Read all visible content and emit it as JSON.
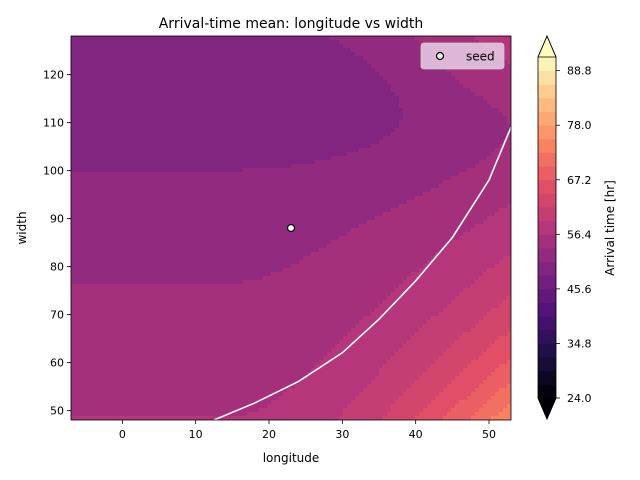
{
  "chart_data": {
    "type": "contourf",
    "title": "Arrival-time mean: longitude vs width",
    "xlabel": "longitude",
    "ylabel": "width",
    "xlim": [
      -7,
      53
    ],
    "ylim": [
      48,
      128
    ],
    "xticks": [
      0,
      10,
      20,
      30,
      40,
      50
    ],
    "yticks": [
      50,
      60,
      70,
      80,
      90,
      100,
      110,
      120
    ],
    "colorbar": {
      "label": "Arrival time [hr]",
      "levels": [
        24.0,
        26.7,
        29.4,
        32.1,
        34.8,
        37.5,
        40.2,
        42.9,
        45.6,
        48.3,
        51.0,
        53.7,
        56.4,
        59.1,
        61.8,
        64.5,
        67.2,
        69.9,
        72.6,
        75.3,
        78.0,
        80.7,
        83.4,
        86.1,
        88.8,
        91.5
      ],
      "tick_labels": [
        "24.0",
        "34.8",
        "45.6",
        "56.4",
        "67.2",
        "78.0",
        "88.8"
      ],
      "extend": "both",
      "colormap": "magma"
    },
    "surface_model": {
      "description_points": [
        {
          "longitude": -5,
          "width": 120,
          "value": 48.5
        },
        {
          "longitude": 10,
          "width": 120,
          "value": 49.0
        },
        {
          "longitude": 40,
          "width": 120,
          "value": 51.0
        },
        {
          "longitude": 50,
          "width": 125,
          "value": 55.0
        },
        {
          "longitude": 0,
          "width": 90,
          "value": 53.0
        },
        {
          "longitude": 23,
          "width": 88,
          "value": 53.5
        },
        {
          "longitude": 0,
          "width": 60,
          "value": 56.0
        },
        {
          "longitude": 0,
          "width": 50,
          "value": 58.0
        },
        {
          "longitude": 30,
          "width": 50,
          "value": 67.0
        },
        {
          "longitude": 40,
          "width": 50,
          "value": 78.0
        },
        {
          "longitude": 50,
          "width": 50,
          "value": 90.0
        },
        {
          "longitude": 50,
          "width": 80,
          "value": 72.0
        }
      ]
    },
    "contour_line": {
      "color": "#ffffff",
      "points": [
        [
          12.5,
          48
        ],
        [
          18,
          51.5
        ],
        [
          24,
          56
        ],
        [
          30,
          62
        ],
        [
          35,
          69
        ],
        [
          40,
          77
        ],
        [
          45,
          86
        ],
        [
          50,
          98
        ],
        [
          53,
          109
        ]
      ]
    },
    "scatter": [
      {
        "name": "seed",
        "x": 23,
        "y": 88
      }
    ],
    "legend": {
      "position": "top-right",
      "entries": [
        "seed"
      ]
    }
  }
}
